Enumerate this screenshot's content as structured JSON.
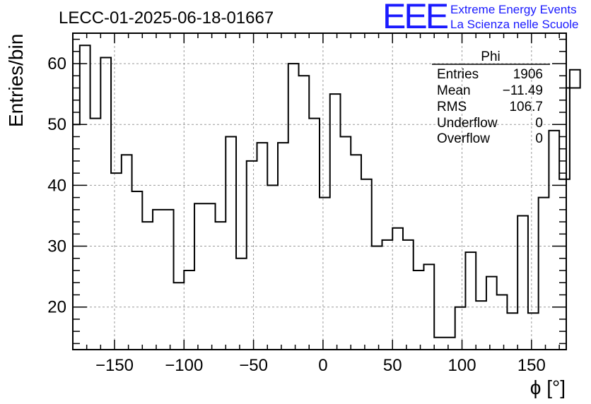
{
  "title": "LECC-01-2025-06-18-01667",
  "logo": {
    "mark": "EEE",
    "line1": "Extreme Energy Events",
    "line2": "La Scienza nelle Scuole",
    "color": "#1a1aff"
  },
  "stats": {
    "name": "Phi",
    "rows": [
      {
        "label": "Entries",
        "value": "1906"
      },
      {
        "label": "Mean",
        "value": "−11.49"
      },
      {
        "label": "RMS",
        "value": "106.7"
      },
      {
        "label": "Underflow",
        "value": "0"
      },
      {
        "label": "Overflow",
        "value": "0"
      }
    ]
  },
  "chart_data": {
    "type": "histogram",
    "title": "LECC-01-2025-06-18-01667",
    "xlabel": "ϕ [°]",
    "ylabel": "Entries/bin",
    "xlim": [
      -180,
      175
    ],
    "ylim": [
      13,
      65
    ],
    "xticks": [
      -150,
      -100,
      -50,
      0,
      50,
      100,
      150
    ],
    "xtick_labels": [
      "−150",
      "−100",
      "−50",
      "0",
      "50",
      "100",
      "150"
    ],
    "yticks": [
      20,
      30,
      40,
      50,
      60
    ],
    "ytick_labels": [
      "20",
      "30",
      "40",
      "50",
      "60"
    ],
    "grid": true,
    "bin_width": 7.5,
    "bin_start": -175,
    "values": [
      63,
      51,
      61,
      42,
      45,
      39,
      34,
      36,
      36,
      24,
      26,
      37,
      37,
      34,
      48,
      28,
      44,
      47,
      40,
      47,
      60,
      58,
      51,
      38,
      55,
      48,
      45,
      41,
      30,
      31,
      33,
      31,
      26,
      27,
      15,
      15,
      20,
      29,
      21,
      25,
      22,
      19,
      35,
      19,
      38,
      49,
      41,
      59
    ],
    "left_edge_value": 50,
    "right_edge_value": 56,
    "line_color": "#000000"
  }
}
